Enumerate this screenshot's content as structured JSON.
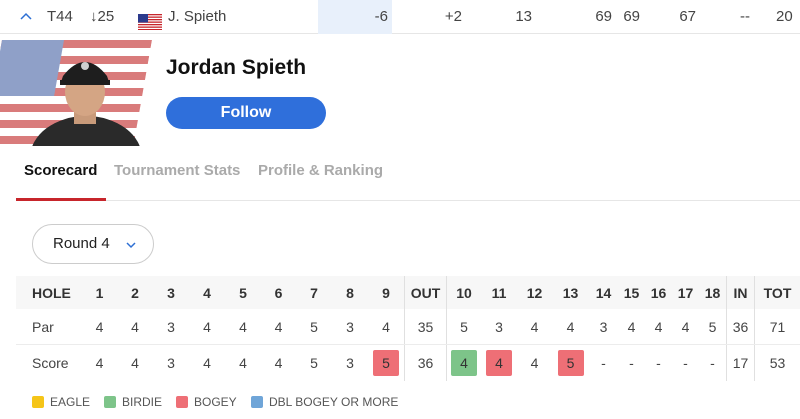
{
  "leaderboard_row": {
    "position": "T44",
    "movement": "25",
    "player_name": "J. Spieth",
    "total": "-6",
    "thru": "+2",
    "r1": "13",
    "r2": "69",
    "r3": "69",
    "r4": "67",
    "r5": "--",
    "tot": "20"
  },
  "player": {
    "name": "Jordan Spieth",
    "follow_label": "Follow"
  },
  "tabs": [
    {
      "label": "Scorecard",
      "active": true
    },
    {
      "label": "Tournament Stats",
      "active": false
    },
    {
      "label": "Profile & Ranking",
      "active": false
    }
  ],
  "round_select": {
    "value": "Round 4"
  },
  "scorecard": {
    "headers": [
      "HOLE",
      "1",
      "2",
      "3",
      "4",
      "5",
      "6",
      "7",
      "8",
      "9",
      "OUT",
      "10",
      "11",
      "12",
      "13",
      "14",
      "15",
      "16",
      "17",
      "18",
      "IN",
      "TOT"
    ],
    "par": [
      "Par",
      "4",
      "4",
      "3",
      "4",
      "4",
      "4",
      "5",
      "3",
      "4",
      "35",
      "5",
      "3",
      "4",
      "4",
      "3",
      "4",
      "4",
      "4",
      "5",
      "36",
      "71"
    ],
    "score": [
      "Score",
      "4",
      "4",
      "3",
      "4",
      "4",
      "4",
      "5",
      "3",
      "5",
      "36",
      "4",
      "4",
      "4",
      "5",
      "-",
      "-",
      "-",
      "-",
      "-",
      "17",
      "53"
    ],
    "score_types": [
      "",
      "",
      "",
      "",
      "",
      "",
      "",
      "",
      "",
      "bogey",
      "",
      "birdie",
      "bogey",
      "",
      "bogey",
      "",
      "",
      "",
      "",
      "",
      "",
      ""
    ]
  },
  "legend": [
    {
      "label": "EAGLE",
      "color": "#f5c518"
    },
    {
      "label": "BIRDIE",
      "color": "#7dc489"
    },
    {
      "label": "BOGEY",
      "color": "#ee6f76"
    },
    {
      "label": "DBL BOGEY OR MORE",
      "color": "#6fa5d8"
    }
  ]
}
